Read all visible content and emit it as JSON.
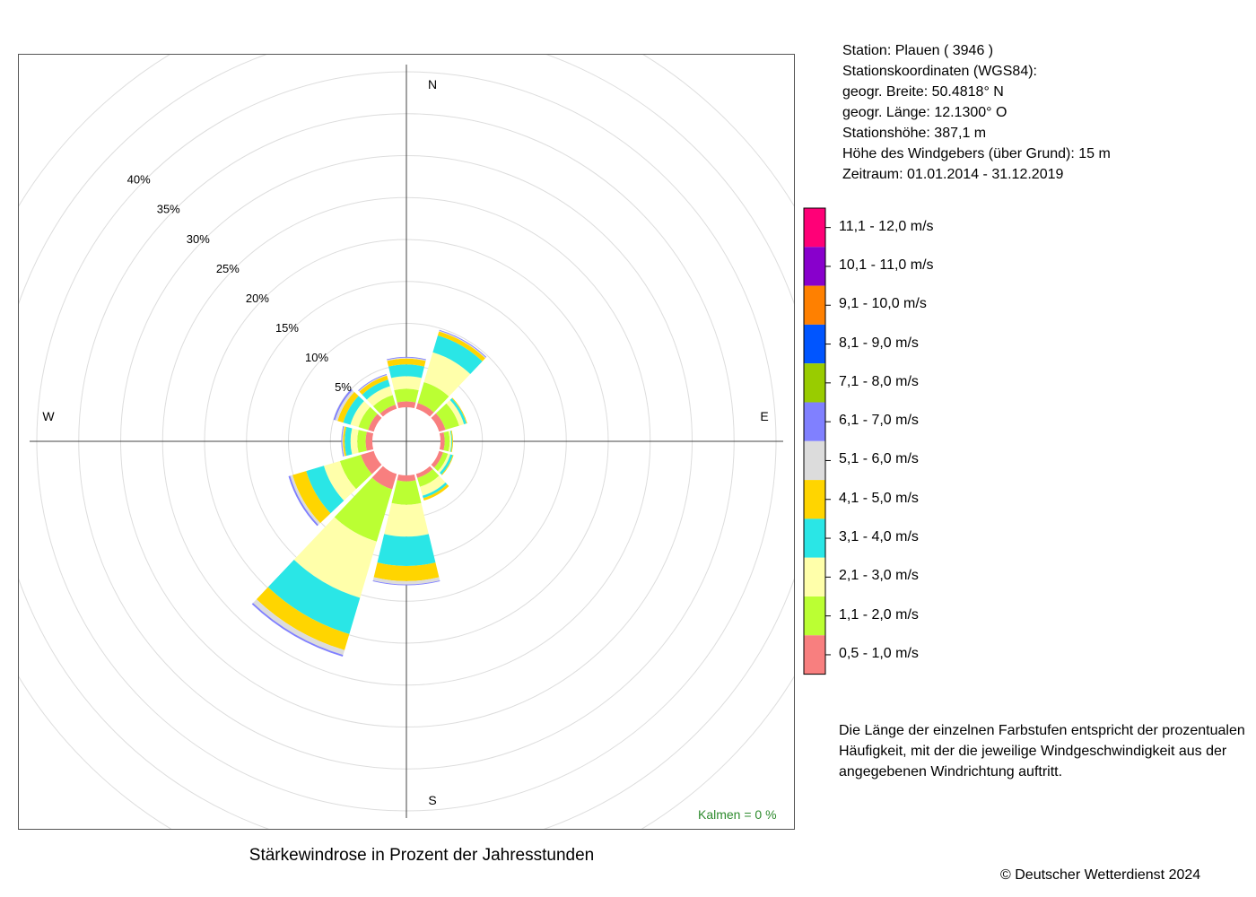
{
  "station": {
    "line1": "Station:  Plauen  ( 3946 )",
    "line2": "Stationskoordinaten (WGS84):",
    "line3": "geogr. Breite: 50.4818° N",
    "line4": "geogr. Länge: 12.1300° O",
    "line5": "Stationshöhe: 387,1 m",
    "line6": "Höhe des Windgebers (über Grund): 15 m",
    "line7": "Zeitraum: 01.01.2014 - 31.12.2019"
  },
  "note": "Die Länge der einzelnen Farbstufen entspricht der prozentualen Häufigkeit, mit der die jeweilige Windgeschwindigkeit aus der angegebenen Windrichtung auftritt.",
  "copyright": "© Deutscher Wetterdienst  2024",
  "chart_data": {
    "type": "windrose",
    "title": "Stärkewindrose in Prozent der Jahresstunden",
    "calm_label": "Kalmen  =  0 %",
    "compass": {
      "N": "N",
      "E": "E",
      "S": "S",
      "W": "W"
    },
    "radial_ticks": [
      5,
      10,
      15,
      20,
      25,
      30,
      35,
      40
    ],
    "radial_tick_labels": [
      "5%",
      "10%",
      "15%",
      "20%",
      "25%",
      "30%",
      "35%",
      "40%"
    ],
    "grid": true,
    "directions_deg": [
      0,
      30,
      60,
      90,
      120,
      150,
      180,
      210,
      240,
      270,
      300,
      330
    ],
    "speed_classes": [
      "0,5 - 1,0 m/s",
      "1,1 - 2,0 m/s",
      "2,1 - 3,0 m/s",
      "3,1 - 4,0 m/s",
      "4,1 - 5,0 m/s",
      "5,1 - 6,0 m/s",
      "6,1 - 7,0 m/s",
      "7,1 - 8,0 m/s",
      "8,1 - 9,0 m/s",
      "9,1 - 10,0 m/s",
      "10,1 - 11,0 m/s",
      "11,1 - 12,0 m/s"
    ],
    "colors": [
      "#f87f7f",
      "#bbff33",
      "#ffffaa",
      "#2ae6e6",
      "#ffd500",
      "#dcdcdc",
      "#8080ff",
      "#99cc00",
      "#0055ff",
      "#ff8000",
      "#8800cc",
      "#ff0077"
    ],
    "values": [
      [
        0.7,
        1.5,
        1.5,
        1.4,
        0.7,
        0.1,
        0.1,
        0,
        0,
        0,
        0,
        0
      ],
      [
        0.7,
        2.6,
        3.7,
        2.1,
        0.5,
        0.1,
        0.1,
        0,
        0,
        0,
        0,
        0
      ],
      [
        0.8,
        1.7,
        0.6,
        0.3,
        0.1,
        0,
        0,
        0,
        0,
        0,
        0,
        0
      ],
      [
        0.5,
        0.6,
        0.2,
        0.1,
        0.1,
        0,
        0,
        0,
        0,
        0,
        0,
        0
      ],
      [
        0.5,
        0.6,
        0.3,
        0.3,
        0.1,
        0,
        0,
        0,
        0,
        0,
        0,
        0
      ],
      [
        0.5,
        1.1,
        1.1,
        0.3,
        0.3,
        0,
        0,
        0,
        0,
        0,
        0,
        0
      ],
      [
        0.7,
        2.8,
        3.8,
        3.5,
        1.8,
        0.4,
        0.1,
        0,
        0,
        0,
        0,
        0
      ],
      [
        1.9,
        6.5,
        7.0,
        4.5,
        2.0,
        0.6,
        0.2,
        0,
        0,
        0,
        0,
        0
      ],
      [
        1.6,
        2.6,
        2.0,
        2.2,
        1.7,
        0.3,
        0.2,
        0,
        0,
        0,
        0,
        0
      ],
      [
        0.8,
        1.0,
        0.8,
        0.7,
        0.2,
        0.1,
        0.1,
        0,
        0,
        0,
        0,
        0
      ],
      [
        0.7,
        1.2,
        1.0,
        0.9,
        0.7,
        0.3,
        0.2,
        0,
        0,
        0,
        0,
        0
      ],
      [
        0.5,
        1.2,
        1.1,
        0.8,
        0.5,
        0.1,
        0.1,
        0,
        0,
        0,
        0,
        0
      ]
    ]
  }
}
